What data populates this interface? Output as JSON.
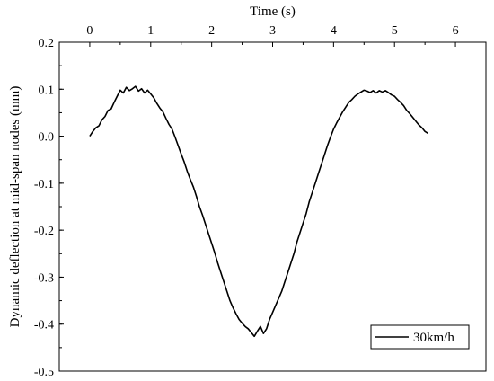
{
  "chart_data": {
    "type": "line",
    "xlabel": "Time (s)",
    "ylabel": "Dynamic deflection at mid-span nodes (mm)",
    "xlim": [
      -0.5,
      6.5
    ],
    "ylim": [
      -0.5,
      0.2
    ],
    "x_ticks": [
      0,
      1,
      2,
      3,
      4,
      5,
      6
    ],
    "x_tick_labels": [
      "0",
      "1",
      "2",
      "3",
      "4",
      "5",
      "6"
    ],
    "y_ticks": [
      0.2,
      0.1,
      0.0,
      -0.1,
      -0.2,
      -0.3,
      -0.4,
      -0.5
    ],
    "y_tick_labels": [
      "0.2",
      "0.1",
      "0.0",
      "-0.1",
      "-0.2",
      "-0.3",
      "-0.4",
      "-0.5"
    ],
    "x_axis_position": "top",
    "grid": false,
    "legend_position": "bottom-right",
    "series": [
      {
        "name": "30km/h",
        "color": "#000000",
        "x": [
          0.0,
          0.05,
          0.1,
          0.15,
          0.2,
          0.25,
          0.3,
          0.35,
          0.4,
          0.45,
          0.5,
          0.55,
          0.6,
          0.65,
          0.7,
          0.75,
          0.8,
          0.85,
          0.9,
          0.95,
          1.0,
          1.05,
          1.1,
          1.15,
          1.2,
          1.25,
          1.3,
          1.35,
          1.4,
          1.45,
          1.5,
          1.55,
          1.6,
          1.65,
          1.7,
          1.75,
          1.8,
          1.85,
          1.9,
          1.95,
          2.0,
          2.05,
          2.1,
          2.15,
          2.2,
          2.25,
          2.3,
          2.35,
          2.4,
          2.45,
          2.5,
          2.55,
          2.6,
          2.65,
          2.7,
          2.75,
          2.8,
          2.85,
          2.9,
          2.95,
          3.0,
          3.05,
          3.1,
          3.15,
          3.2,
          3.25,
          3.3,
          3.35,
          3.4,
          3.45,
          3.5,
          3.55,
          3.6,
          3.65,
          3.7,
          3.75,
          3.8,
          3.85,
          3.9,
          3.95,
          4.0,
          4.05,
          4.1,
          4.15,
          4.2,
          4.25,
          4.3,
          4.35,
          4.4,
          4.45,
          4.5,
          4.55,
          4.6,
          4.65,
          4.7,
          4.75,
          4.8,
          4.85,
          4.9,
          4.95,
          5.0,
          5.05,
          5.1,
          5.15,
          5.2,
          5.25,
          5.3,
          5.35,
          5.4,
          5.45,
          5.5,
          5.55
        ],
        "y": [
          0.0,
          0.01,
          0.018,
          0.022,
          0.035,
          0.042,
          0.055,
          0.058,
          0.072,
          0.085,
          0.098,
          0.092,
          0.104,
          0.097,
          0.101,
          0.106,
          0.096,
          0.101,
          0.092,
          0.098,
          0.09,
          0.082,
          0.07,
          0.06,
          0.052,
          0.038,
          0.025,
          0.015,
          -0.002,
          -0.02,
          -0.038,
          -0.055,
          -0.075,
          -0.092,
          -0.108,
          -0.128,
          -0.15,
          -0.168,
          -0.188,
          -0.208,
          -0.228,
          -0.248,
          -0.27,
          -0.29,
          -0.31,
          -0.33,
          -0.35,
          -0.365,
          -0.378,
          -0.39,
          -0.398,
          -0.405,
          -0.41,
          -0.418,
          -0.426,
          -0.415,
          -0.405,
          -0.42,
          -0.41,
          -0.39,
          -0.375,
          -0.36,
          -0.345,
          -0.33,
          -0.31,
          -0.29,
          -0.27,
          -0.25,
          -0.225,
          -0.205,
          -0.185,
          -0.165,
          -0.14,
          -0.12,
          -0.1,
          -0.08,
          -0.06,
          -0.04,
          -0.02,
          -0.002,
          0.015,
          0.028,
          0.04,
          0.052,
          0.062,
          0.072,
          0.078,
          0.085,
          0.09,
          0.094,
          0.098,
          0.096,
          0.093,
          0.097,
          0.092,
          0.097,
          0.094,
          0.097,
          0.093,
          0.088,
          0.085,
          0.078,
          0.072,
          0.065,
          0.055,
          0.048,
          0.04,
          0.032,
          0.024,
          0.018,
          0.01,
          0.006
        ]
      }
    ]
  }
}
